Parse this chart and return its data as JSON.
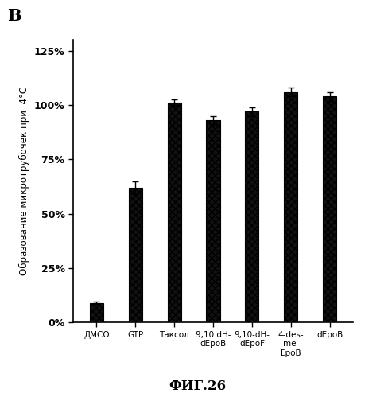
{
  "categories": [
    "ДМСО",
    "GTP",
    "Таксол",
    "9,10 dH-\ndEpoB",
    "9,10-dH-\ndEpoF",
    "4-des-\nme-\nEpoB",
    "dEpoB"
  ],
  "values": [
    9,
    62,
    101,
    93,
    97,
    106,
    104
  ],
  "bar_color": "#111111",
  "background_color": "#ffffff",
  "ylabel": "Образование микротрубочек при  4°С",
  "xlabel": "",
  "panel_label": "B",
  "footer": "ФИГ.26",
  "ylim": [
    0,
    130
  ],
  "yticks": [
    0,
    25,
    50,
    75,
    100,
    125
  ],
  "ytick_labels": [
    "0%",
    "25%",
    "50%",
    "75%",
    "100%",
    "125%"
  ],
  "bar_width": 0.35,
  "x_positions": [
    0,
    1,
    2,
    3,
    4,
    5,
    6
  ]
}
